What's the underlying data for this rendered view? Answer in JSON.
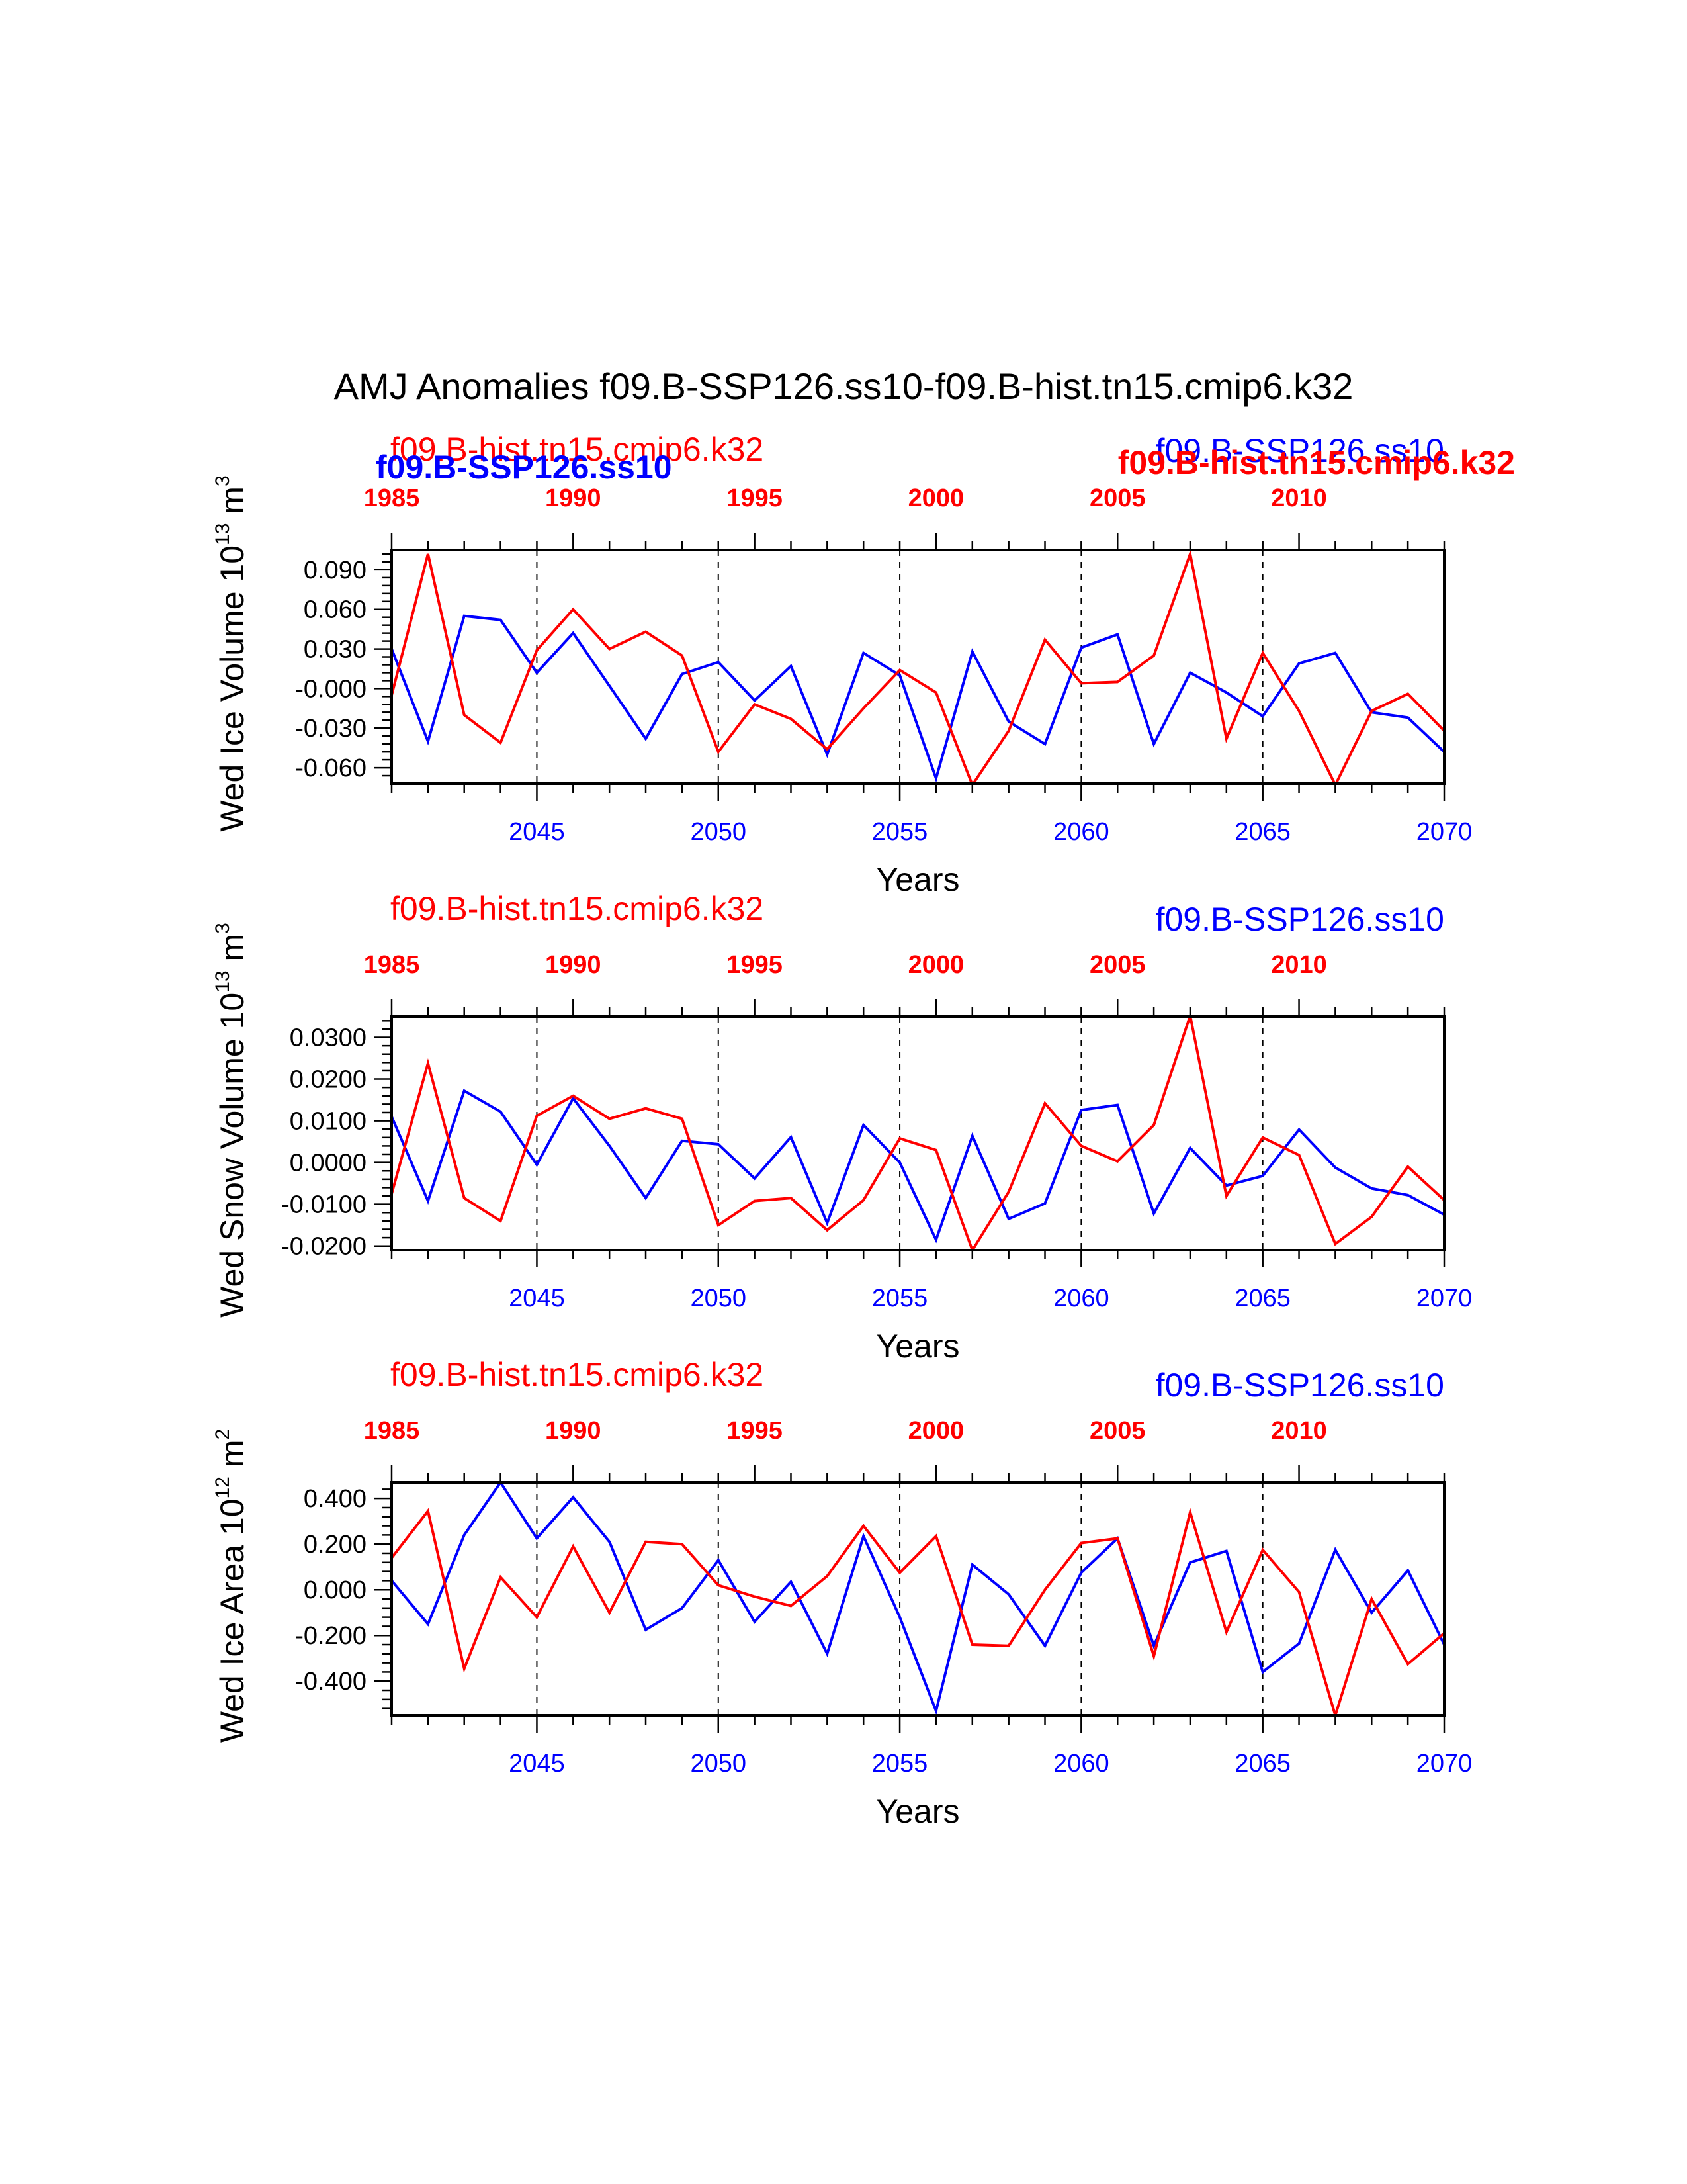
{
  "title": "AMJ Anomalies f09.B-SSP126.ss10-f09.B-hist.tn15.cmip6.k32",
  "colors": {
    "ssp": "#0000ff",
    "hist": "#ff0000",
    "axis": "#000000"
  },
  "chart_data": [
    {
      "type": "line",
      "ylabel_main": "Wed Ice Volume 10",
      "ylabel_exp": "13",
      "ylabel_unit": " m",
      "ylabel_unit_exp": "3",
      "xlabel": "Years",
      "ylim": [
        -0.072,
        0.105
      ],
      "yticks": [
        0.09,
        0.06,
        0.03,
        0.0,
        -0.03,
        -0.06
      ],
      "ytick_labels": [
        "0.090",
        "0.060",
        "0.030",
        "-0.000",
        "-0.030",
        "-0.060"
      ],
      "x_bottom_ticks": [
        2045,
        2050,
        2055,
        2060,
        2065,
        2070
      ],
      "x_top_ticks": [
        1985,
        1990,
        1995,
        2000,
        2005,
        2010
      ],
      "top_labels": {
        "left_hist": "f09.B-hist.tn15.cmip6.k32",
        "left_ssp_bold": "f09.B-SSP126.ss10",
        "right_ssp": "f09.B-SSP126.ss10",
        "right_hist_bold": "f09.B-hist.tn15.cmip6.k32"
      },
      "series": [
        {
          "name": "f09.B-SSP126.ss10",
          "color": "#0000ff",
          "x": [
            2041,
            2042,
            2043,
            2044,
            2045,
            2046,
            2047,
            2048,
            2049,
            2050,
            2051,
            2052,
            2053,
            2054,
            2055,
            2056,
            2057,
            2058,
            2059,
            2060,
            2061,
            2062,
            2063,
            2064,
            2065,
            2066,
            2067,
            2068,
            2069,
            2070
          ],
          "values": [
            0.03,
            -0.04,
            0.055,
            0.052,
            0.012,
            0.042,
            0.002,
            -0.038,
            0.011,
            0.02,
            -0.009,
            0.017,
            -0.05,
            0.027,
            0.01,
            -0.068,
            0.028,
            -0.025,
            -0.042,
            0.031,
            0.041,
            -0.042,
            0.012,
            -0.003,
            -0.021,
            0.019,
            0.027,
            -0.018,
            -0.022,
            -0.048
          ]
        },
        {
          "name": "f09.B-hist.tn15.cmip6.k32",
          "color": "#ff0000",
          "x": [
            2041,
            2042,
            2043,
            2044,
            2045,
            2046,
            2047,
            2048,
            2049,
            2050,
            2051,
            2052,
            2053,
            2054,
            2055,
            2056,
            2057,
            2058,
            2059,
            2060,
            2061,
            2062,
            2063,
            2064,
            2065,
            2066,
            2067,
            2068,
            2069,
            2070
          ],
          "values": [
            -0.005,
            0.102,
            -0.02,
            -0.041,
            0.029,
            0.06,
            0.03,
            0.043,
            0.025,
            -0.048,
            -0.012,
            -0.023,
            -0.046,
            -0.015,
            0.014,
            -0.003,
            -0.073,
            -0.032,
            0.037,
            0.004,
            0.005,
            0.025,
            0.102,
            -0.038,
            0.027,
            -0.017,
            -0.073,
            -0.017,
            -0.004,
            -0.032
          ]
        }
      ]
    },
    {
      "type": "line",
      "ylabel_main": "Wed Snow Volume 10",
      "ylabel_exp": "13",
      "ylabel_unit": " m",
      "ylabel_unit_exp": "3",
      "xlabel": "Years",
      "ylim": [
        -0.021,
        0.035
      ],
      "yticks": [
        0.03,
        0.02,
        0.01,
        0.0,
        -0.01,
        -0.02
      ],
      "ytick_labels": [
        "0.0300",
        "0.0200",
        "0.0100",
        "0.0000",
        "-0.0100",
        "-0.0200"
      ],
      "x_bottom_ticks": [
        2045,
        2050,
        2055,
        2060,
        2065,
        2070
      ],
      "x_top_ticks": [
        1985,
        1990,
        1995,
        2000,
        2005,
        2010
      ],
      "top_labels": {
        "left_hist": "f09.B-hist.tn15.cmip6.k32",
        "right_ssp": "f09.B-SSP126.ss10"
      },
      "series": [
        {
          "name": "f09.B-SSP126.ss10",
          "color": "#0000ff",
          "x": [
            2041,
            2042,
            2043,
            2044,
            2045,
            2046,
            2047,
            2048,
            2049,
            2050,
            2051,
            2052,
            2053,
            2054,
            2055,
            2056,
            2057,
            2058,
            2059,
            2060,
            2061,
            2062,
            2063,
            2064,
            2065,
            2066,
            2067,
            2068,
            2069,
            2070
          ],
          "values": [
            0.011,
            -0.0092,
            0.0172,
            0.0122,
            -0.0005,
            0.0154,
            0.004,
            -0.0085,
            0.0052,
            0.0044,
            -0.0038,
            0.0061,
            -0.0145,
            0.009,
            0.0,
            -0.0185,
            0.0064,
            -0.0135,
            -0.0098,
            0.0126,
            0.0138,
            -0.0122,
            0.0035,
            -0.0055,
            -0.0032,
            0.0079,
            -0.0012,
            -0.0062,
            -0.0078,
            -0.0125
          ]
        },
        {
          "name": "f09.B-hist.tn15.cmip6.k32",
          "color": "#ff0000",
          "x": [
            2041,
            2042,
            2043,
            2044,
            2045,
            2046,
            2047,
            2048,
            2049,
            2050,
            2051,
            2052,
            2053,
            2054,
            2055,
            2056,
            2057,
            2058,
            2059,
            2060,
            2061,
            2062,
            2063,
            2064,
            2065,
            2066,
            2067,
            2068,
            2069,
            2070
          ],
          "values": [
            -0.0075,
            0.0238,
            -0.0085,
            -0.014,
            0.0112,
            0.016,
            0.0105,
            0.013,
            0.0105,
            -0.015,
            -0.0092,
            -0.0085,
            -0.0162,
            -0.009,
            0.0058,
            0.003,
            -0.021,
            -0.007,
            0.0142,
            0.004,
            0.0003,
            0.009,
            0.0352,
            -0.008,
            0.006,
            0.0018,
            -0.0195,
            -0.013,
            -0.001,
            -0.009
          ]
        }
      ]
    },
    {
      "type": "line",
      "ylabel_main": "Wed Ice Area 10",
      "ylabel_exp": "12",
      "ylabel_unit": " m",
      "ylabel_unit_exp": "2",
      "xlabel": "Years",
      "ylim": [
        -0.55,
        0.47
      ],
      "yticks": [
        0.4,
        0.2,
        0.0,
        -0.2,
        -0.4
      ],
      "ytick_labels": [
        "0.400",
        "0.200",
        "0.000",
        "-0.200",
        "-0.400"
      ],
      "x_bottom_ticks": [
        2045,
        2050,
        2055,
        2060,
        2065,
        2070
      ],
      "x_top_ticks": [
        1985,
        1990,
        1995,
        2000,
        2005,
        2010
      ],
      "top_labels": {
        "left_hist": "f09.B-hist.tn15.cmip6.k32",
        "right_ssp": "f09.B-SSP126.ss10"
      },
      "series": [
        {
          "name": "f09.B-SSP126.ss10",
          "color": "#0000ff",
          "x": [
            2041,
            2042,
            2043,
            2044,
            2045,
            2046,
            2047,
            2048,
            2049,
            2050,
            2051,
            2052,
            2053,
            2054,
            2055,
            2056,
            2057,
            2058,
            2059,
            2060,
            2061,
            2062,
            2063,
            2064,
            2065,
            2066,
            2067,
            2068,
            2069,
            2070
          ],
          "values": [
            0.04,
            -0.15,
            0.24,
            0.47,
            0.225,
            0.405,
            0.21,
            -0.175,
            -0.08,
            0.13,
            -0.14,
            0.035,
            -0.28,
            0.235,
            -0.12,
            -0.53,
            0.11,
            -0.02,
            -0.245,
            0.075,
            0.225,
            -0.245,
            0.12,
            0.17,
            -0.36,
            -0.235,
            0.175,
            -0.1,
            0.085,
            -0.24
          ]
        },
        {
          "name": "f09.B-hist.tn15.cmip6.k32",
          "color": "#ff0000",
          "x": [
            2041,
            2042,
            2043,
            2044,
            2045,
            2046,
            2047,
            2048,
            2049,
            2050,
            2051,
            2052,
            2053,
            2054,
            2055,
            2056,
            2057,
            2058,
            2059,
            2060,
            2061,
            2062,
            2063,
            2064,
            2065,
            2066,
            2067,
            2068,
            2069,
            2070
          ],
          "values": [
            0.14,
            0.345,
            -0.345,
            0.055,
            -0.12,
            0.19,
            -0.1,
            0.21,
            0.2,
            0.02,
            -0.03,
            -0.07,
            0.06,
            0.28,
            0.075,
            0.235,
            -0.24,
            -0.245,
            0.0,
            0.205,
            0.225,
            -0.29,
            0.34,
            -0.185,
            0.175,
            -0.01,
            -0.55,
            -0.04,
            -0.325,
            -0.19
          ]
        }
      ]
    }
  ]
}
